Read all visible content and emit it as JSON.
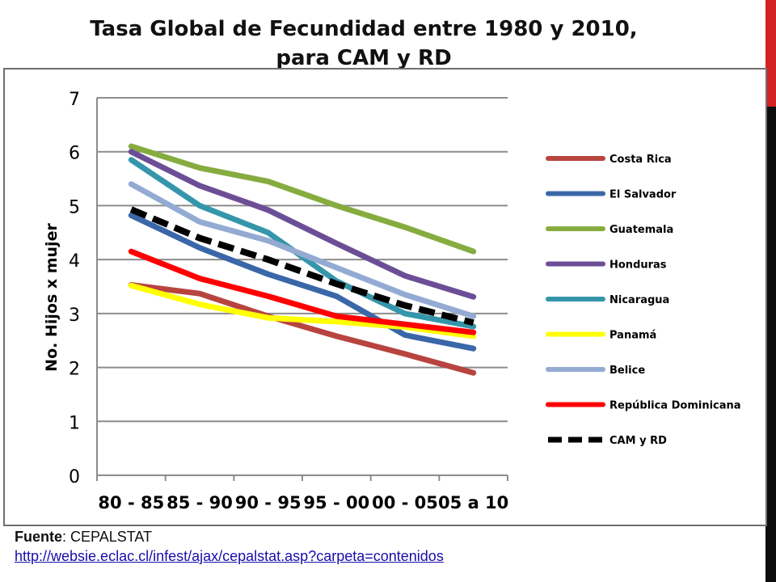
{
  "title": {
    "line1": "Tasa Global de Fecundidad entre 1980 y 2010,",
    "line2": "para CAM y RD"
  },
  "source": {
    "label": "Fuente",
    "text": ": CEPALSTAT",
    "url": "http://websie.eclac.cl/infest/ajax/cepalstat.asp?carpeta=contenidos"
  },
  "chart_data": {
    "type": "line",
    "title": "",
    "xlabel": "",
    "ylabel": "No. Hijos x mujer",
    "ylim": [
      0,
      7
    ],
    "yticks": [
      "0",
      "1",
      "2",
      "3",
      "4",
      "5",
      "6",
      "7"
    ],
    "grid": true,
    "legend": "right",
    "categories": [
      "80 - 85",
      "85 - 90",
      "90 - 95",
      "95 - 00",
      "00 - 05",
      "05 a 10"
    ],
    "series": [
      {
        "name": "Costa Rica",
        "color": "#b84440",
        "dashed": false,
        "values": [
          3.53,
          3.37,
          2.95,
          2.58,
          2.25,
          1.9
        ]
      },
      {
        "name": "El Salvador",
        "color": "#3a67a8",
        "dashed": false,
        "values": [
          4.82,
          4.22,
          3.73,
          3.32,
          2.6,
          2.35
        ]
      },
      {
        "name": "Guatemala",
        "color": "#86ac40",
        "dashed": false,
        "values": [
          6.1,
          5.7,
          5.45,
          5.0,
          4.6,
          4.15
        ]
      },
      {
        "name": "Honduras",
        "color": "#6c4e96",
        "dashed": false,
        "values": [
          6.0,
          5.37,
          4.92,
          4.3,
          3.7,
          3.31
        ]
      },
      {
        "name": "Nicaragua",
        "color": "#3596ab",
        "dashed": false,
        "values": [
          5.85,
          5.0,
          4.5,
          3.6,
          3.0,
          2.76
        ]
      },
      {
        "name": "Panamá",
        "color": "#ffff00",
        "dashed": false,
        "values": [
          3.52,
          3.17,
          2.92,
          2.85,
          2.75,
          2.58
        ]
      },
      {
        "name": "Belice",
        "color": "#93abd2",
        "dashed": false,
        "values": [
          5.4,
          4.7,
          4.35,
          3.85,
          3.35,
          2.95
        ]
      },
      {
        "name": "República Dominicana",
        "color": "#ff0000",
        "dashed": false,
        "values": [
          4.15,
          3.65,
          3.32,
          2.95,
          2.8,
          2.65
        ]
      },
      {
        "name": "CAM y RD",
        "color": "#000000",
        "dashed": true,
        "values": [
          4.93,
          4.4,
          4.0,
          3.55,
          3.15,
          2.83
        ]
      }
    ]
  }
}
